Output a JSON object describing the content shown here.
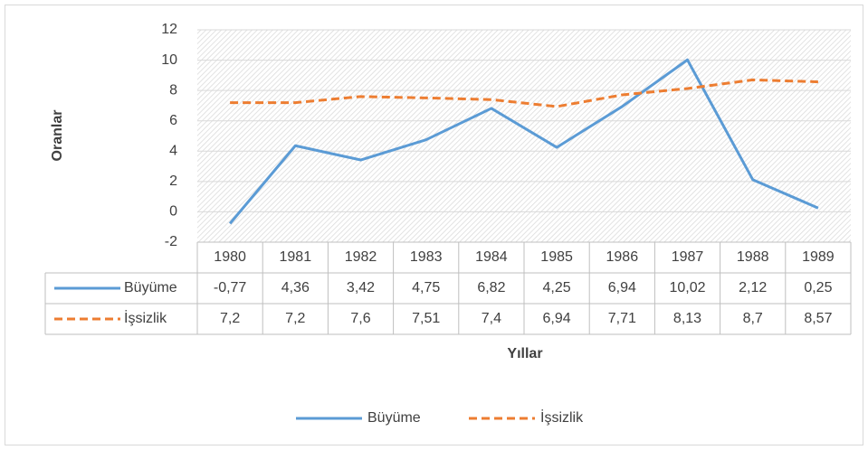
{
  "chart_data": {
    "type": "line",
    "x_label": "Yıllar",
    "y_label": "Oranlar",
    "categories": [
      "1980",
      "1981",
      "1982",
      "1983",
      "1984",
      "1985",
      "1986",
      "1987",
      "1988",
      "1989"
    ],
    "series": [
      {
        "name": "Büyüme",
        "color": "#5b9bd5",
        "dashed": false,
        "values": [
          -0.77,
          4.36,
          3.42,
          4.75,
          6.82,
          4.25,
          6.94,
          10.02,
          2.12,
          0.25
        ],
        "value_labels": [
          "-0,77",
          "4,36",
          "3,42",
          "4,75",
          "6,82",
          "4,25",
          "6,94",
          "10,02",
          "2,12",
          "0,25"
        ]
      },
      {
        "name": "İşsizlik",
        "color": "#ed7d31",
        "dashed": true,
        "values": [
          7.2,
          7.2,
          7.6,
          7.51,
          7.4,
          6.94,
          7.71,
          8.13,
          8.7,
          8.57
        ],
        "value_labels": [
          "7,2",
          "7,2",
          "7,6",
          "7,51",
          "7,4",
          "6,94",
          "7,71",
          "8,13",
          "8,7",
          "8,57"
        ]
      }
    ],
    "ylim": [
      -2,
      12
    ],
    "yticks": [
      -2,
      0,
      2,
      4,
      6,
      8,
      10,
      12
    ],
    "grid": true,
    "legend": "bottom",
    "data_table": true
  }
}
